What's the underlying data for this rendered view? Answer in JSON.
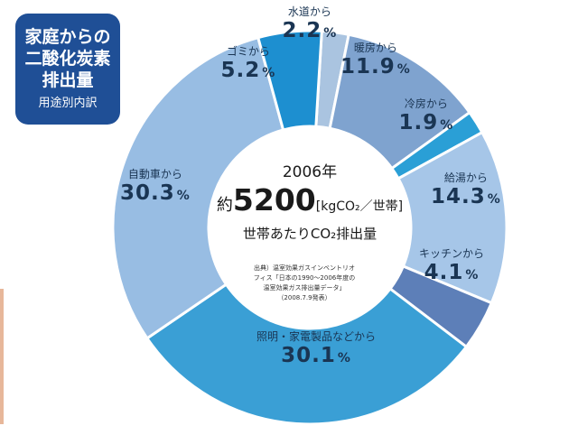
{
  "badge": {
    "title_lines": [
      "家庭からの",
      "二酸化炭素",
      "排出量"
    ],
    "subtitle": "用途別内訳"
  },
  "center": {
    "year": "2006年",
    "prefix": "約",
    "value": "5200",
    "unit": "[kgCO₂／世帯]",
    "label": "世帯あたりCO₂排出量"
  },
  "source_lines": [
    "出典）温室効果ガスインベントリオ",
    "フィス「日本の1990～2006年度の",
    "温室効果ガス排出量データ」",
    "（2008.7.9発表）"
  ],
  "chart_data": {
    "type": "pie",
    "title": "家庭からの二酸化炭素排出量 用途別内訳",
    "unit": "%",
    "slices": [
      {
        "name": "水道から",
        "value": 2.2,
        "display": "2.2",
        "color": "#aac4e0"
      },
      {
        "name": "暖房から",
        "value": 11.9,
        "display": "11.9",
        "color": "#7fa3cf"
      },
      {
        "name": "冷房から",
        "value": 1.9,
        "display": "1.9",
        "color": "#2a9fd6"
      },
      {
        "name": "給湯から",
        "value": 14.3,
        "display": "14.3",
        "color": "#a6c6e8"
      },
      {
        "name": "キッチンから",
        "value": 4.1,
        "display": "4.1",
        "color": "#5d7fb8"
      },
      {
        "name": "照明・家電製品などから",
        "value": 30.1,
        "display": "30.1",
        "color": "#3a9fd5"
      },
      {
        "name": "自動車から",
        "value": 30.3,
        "display": "30.3",
        "color": "#98bde3"
      },
      {
        "name": "ゴミから",
        "value": 5.2,
        "display": "5.2",
        "color": "#1d8fd0"
      }
    ]
  }
}
